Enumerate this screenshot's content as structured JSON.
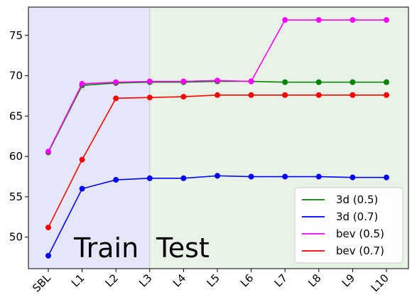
{
  "chart_data": {
    "type": "line",
    "categories": [
      "SBL",
      "L1",
      "L2",
      "L3",
      "L4",
      "L5",
      "L6",
      "L7",
      "L8",
      "L9",
      "L10"
    ],
    "series": [
      {
        "name": "3d (0.5)",
        "color": "#008000",
        "values": [
          60.5,
          68.8,
          69.1,
          69.2,
          69.2,
          69.3,
          69.3,
          69.2,
          69.2,
          69.2,
          69.2
        ]
      },
      {
        "name": "3d (0.7)",
        "color": "#0000ff",
        "values": [
          47.7,
          56.0,
          57.1,
          57.3,
          57.3,
          57.6,
          57.5,
          57.5,
          57.5,
          57.4,
          57.4
        ]
      },
      {
        "name": "bev (0.5)",
        "color": "#ff00ff",
        "values": [
          60.6,
          69.0,
          69.2,
          69.3,
          69.3,
          69.4,
          69.3,
          76.9,
          76.9,
          76.9,
          76.9
        ]
      },
      {
        "name": "bev (0.7)",
        "color": "#ff0000",
        "values": [
          51.2,
          59.6,
          67.2,
          67.3,
          67.4,
          67.6,
          67.6,
          67.6,
          67.6,
          67.6,
          67.6
        ]
      }
    ],
    "regions": [
      {
        "label": "Train",
        "color": "#0000ff",
        "shade": "#e6e6fb"
      },
      {
        "label": "Test",
        "color": "#008000",
        "shade": "#e8f2e6"
      }
    ],
    "ylim": [
      46.1,
      78.5
    ],
    "yticks": [
      50,
      55,
      60,
      65,
      70,
      75
    ],
    "legend": "lower right"
  }
}
